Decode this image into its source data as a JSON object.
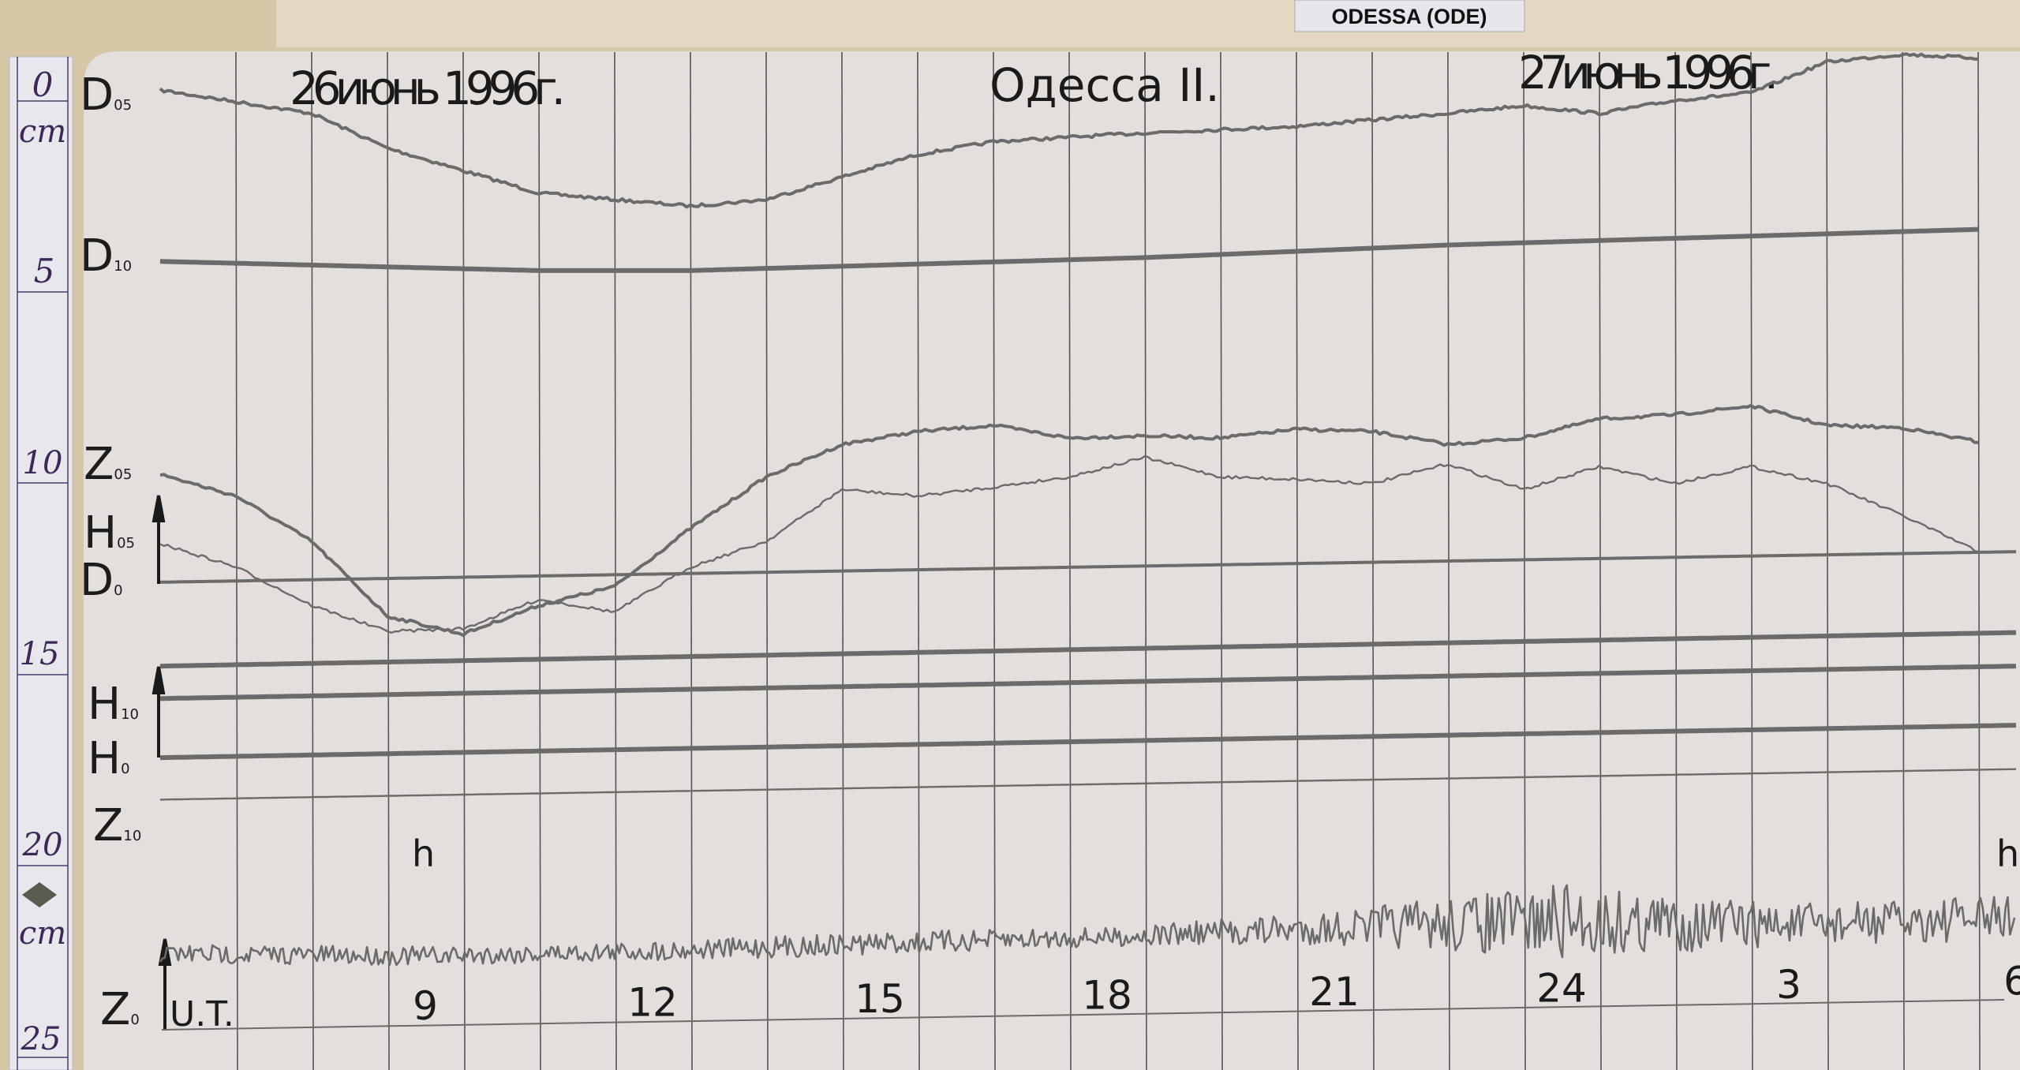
{
  "station_tag": "ODESSA (ODE)",
  "header": {
    "date_left": "26июнь 1996г.",
    "station": "Одесса II.",
    "date_right": "27июнь 1996г."
  },
  "ruler": {
    "unit_top": "cm",
    "unit_bottom": "cm",
    "ticks": [
      "0",
      "5",
      "10",
      "15",
      "20",
      "25"
    ]
  },
  "channel_labels": [
    {
      "main": "D",
      "sub": "05"
    },
    {
      "main": "D",
      "sub": "10"
    },
    {
      "main": "Z",
      "sub": "05"
    },
    {
      "main": "H",
      "sub": "05"
    },
    {
      "main": "D",
      "sub": "0"
    },
    {
      "main": "H",
      "sub": "10"
    },
    {
      "main": "H",
      "sub": "0"
    },
    {
      "main": "Z",
      "sub": "10"
    },
    {
      "main": "Z",
      "sub": "0"
    }
  ],
  "hour_marks": [
    "h",
    "h"
  ],
  "chart_data": {
    "type": "line",
    "xlabel": "U.T.",
    "x_unit": "hours UT",
    "x_tick_labels": [
      "9",
      "12",
      "15",
      "18",
      "21",
      "24",
      "3",
      "6"
    ],
    "x_tick_hours": [
      9,
      12,
      15,
      18,
      21,
      24,
      27,
      30
    ],
    "xlim": [
      5.5,
      30
    ],
    "y_unit": "cm",
    "ylim": [
      0,
      25
    ],
    "grid": "vertical lines every hour (at half-hours)",
    "trace_color": "#6b6b6b",
    "series": [
      {
        "x": [
          5.5,
          7.5,
          8.5,
          10.5,
          12.5,
          13.5,
          15.5,
          16.5,
          18.5,
          20.5,
          22.5,
          23.5,
          24.5,
          25.5,
          26.5,
          27.5,
          28.5,
          29.5
        ],
        "y": [
          0.1,
          0.71,
          1.62,
          2.8,
          3.14,
          2.97,
          1.79,
          1.45,
          1.22,
          1.05,
          0.71,
          0.51,
          0.71,
          0.37,
          0.17,
          -0.64,
          -0.84,
          -0.74
        ],
        "style": "thin"
      },
      {
        "x": [
          5.5,
          10.5,
          12.5,
          18.5,
          22.5,
          29.5
        ],
        "y": [
          4.59,
          4.83,
          4.83,
          4.49,
          4.16,
          3.75
        ],
        "style": "thick"
      },
      {
        "x": [
          5.5,
          6.5,
          7.5,
          8.5,
          9.5,
          10.5,
          11.5,
          12.5,
          13.5,
          14.5,
          15.5,
          16.5,
          17.5,
          18.5,
          19.5,
          20.5,
          21.5,
          22.5,
          23.5,
          24.5,
          25.5,
          26.5,
          27.5,
          28.5,
          29.5
        ],
        "y": [
          10.17,
          10.74,
          11.93,
          13.89,
          14.36,
          13.61,
          13.11,
          11.59,
          10.24,
          9.39,
          9.05,
          8.89,
          9.22,
          9.16,
          9.22,
          8.99,
          9.05,
          9.39,
          9.22,
          8.72,
          8.61,
          8.38,
          8.89,
          8.95,
          9.32
        ],
        "style": "thin"
      },
      {
        "x": [
          5.5,
          6.5,
          7.5,
          8.5,
          9.5,
          10.5,
          11.5,
          12.5,
          13.5,
          14.5,
          15.5,
          16.5,
          17.5,
          18.5,
          19.5,
          20.5,
          21.5,
          22.5,
          23.5,
          24.5,
          25.5,
          26.5,
          27.5,
          28.5,
          29.5
        ],
        "y": [
          11.99,
          12.6,
          13.61,
          14.29,
          14.22,
          13.45,
          13.78,
          12.6,
          11.93,
          10.57,
          10.74,
          10.51,
          10.24,
          9.73,
          10.24,
          10.3,
          10.41,
          9.9,
          10.57,
          9.97,
          10.41,
          9.97,
          10.41,
          11.25,
          12.2
        ],
        "style": "hair"
      },
      {
        "x": [
          5.5,
          30
        ],
        "y": [
          13.0,
          12.2
        ],
        "style": "thin"
      },
      {
        "x": [
          5.5,
          30
        ],
        "y": [
          15.2,
          14.32
        ],
        "style": "thick"
      },
      {
        "x": [
          5.5,
          30
        ],
        "y": [
          16.05,
          15.2
        ],
        "style": "thick"
      },
      {
        "x": [
          5.5,
          30
        ],
        "y": [
          17.6,
          16.75
        ],
        "style": "thick"
      },
      {
        "x": [
          5.5,
          30
        ],
        "y": [
          18.7,
          17.9
        ],
        "style": "hair"
      },
      {
        "x": [
          5.5,
          9,
          12,
          15,
          18,
          21,
          24,
          27,
          30
        ],
        "y": [
          22.74,
          22.8,
          22.67,
          22.47,
          22.3,
          22.06,
          21.89,
          21.99,
          21.79
        ],
        "amplitude_cm": [
          0.25,
          0.25,
          0.25,
          0.3,
          0.25,
          0.45,
          1.0,
          0.55,
          0.6
        ],
        "style": "noisy"
      }
    ]
  }
}
